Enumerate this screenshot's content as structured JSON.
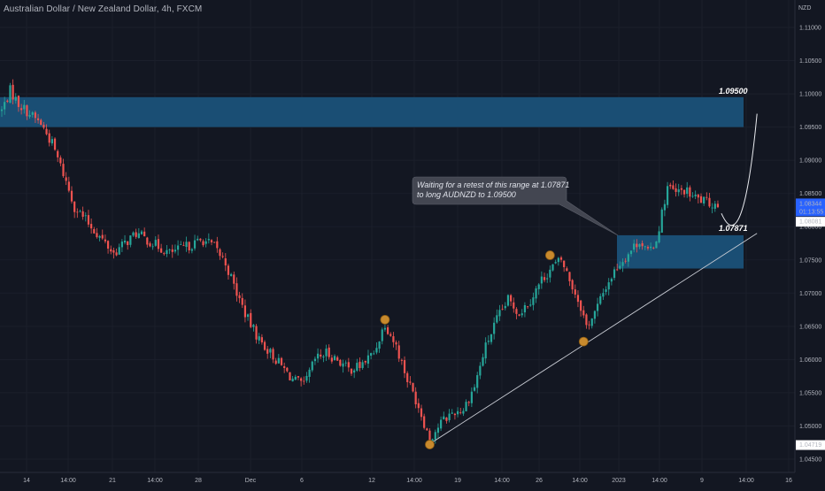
{
  "header": {
    "title": "Australian Dollar / New Zealand Dollar, 4h, FXCM"
  },
  "price_axis": {
    "unit": "NZD",
    "tick_labels": [
      "1.11000",
      "1.10500",
      "1.10000",
      "1.09500",
      "1.09000",
      "1.08500",
      "1.08000",
      "1.07500",
      "1.07000",
      "1.06500",
      "1.06000",
      "1.05500",
      "1.05000",
      "1.04500"
    ],
    "current_price": "1.08344",
    "countdown": "01:13:55",
    "marker_high": "1.08081",
    "marker_low": "1.04719"
  },
  "time_axis": {
    "tick_labels": [
      "14",
      "14:00",
      "21",
      "14:00",
      "28",
      "Dec",
      "6",
      "12",
      "14:00",
      "19",
      "14:00",
      "26",
      "14:00",
      "2023",
      "14:00",
      "9",
      "14:00",
      "16"
    ]
  },
  "annotations": {
    "callout_line1": "Waiting for a retest of this range at 1.07871",
    "callout_line2": "to long AUDNZD to 1.09500",
    "target_label": "1.09500",
    "retest_label": "1.07871"
  },
  "colors": {
    "background": "#131722",
    "up": "#26a69a",
    "down": "#ef5350",
    "zone": "#1c5a86",
    "pivot": "#c88a2d",
    "price_badge": "#2962ff"
  },
  "chart_data": {
    "type": "candlestick",
    "symbol": "AUDNZD",
    "timeframe": "4h",
    "ylim": [
      1.043,
      1.113
    ],
    "close_path": [
      [
        0,
        1.0975
      ],
      [
        3,
        1.1005
      ],
      [
        6,
        1.0985
      ],
      [
        10,
        1.097
      ],
      [
        14,
        1.0955
      ],
      [
        18,
        1.0925
      ],
      [
        22,
        1.088
      ],
      [
        26,
        1.083
      ],
      [
        30,
        1.081
      ],
      [
        36,
        1.078
      ],
      [
        40,
        1.076
      ],
      [
        44,
        1.0775
      ],
      [
        48,
        1.079
      ],
      [
        52,
        1.078
      ],
      [
        56,
        1.077
      ],
      [
        60,
        1.076
      ],
      [
        66,
        1.077
      ],
      [
        72,
        1.078
      ],
      [
        76,
        1.077
      ],
      [
        80,
        1.0745
      ],
      [
        84,
        1.07
      ],
      [
        88,
        1.066
      ],
      [
        92,
        1.063
      ],
      [
        96,
        1.061
      ],
      [
        100,
        1.059
      ],
      [
        104,
        1.057
      ],
      [
        108,
        1.056
      ],
      [
        112,
        1.06
      ],
      [
        116,
        1.061
      ],
      [
        120,
        1.06
      ],
      [
        124,
        1.0585
      ],
      [
        128,
        1.059
      ],
      [
        133,
        1.061
      ],
      [
        137,
        1.0655
      ],
      [
        141,
        1.062
      ],
      [
        145,
        1.057
      ],
      [
        149,
        1.053
      ],
      [
        153,
        1.048
      ],
      [
        157,
        1.0505
      ],
      [
        161,
        1.052
      ],
      [
        165,
        1.0525
      ],
      [
        169,
        1.056
      ],
      [
        173,
        1.062
      ],
      [
        177,
        1.066
      ],
      [
        181,
        1.069
      ],
      [
        185,
        1.067
      ],
      [
        189,
        1.069
      ],
      [
        193,
        1.072
      ],
      [
        197,
        1.074
      ],
      [
        200,
        1.075
      ],
      [
        203,
        1.072
      ],
      [
        207,
        1.068
      ],
      [
        209,
        1.065
      ],
      [
        212,
        1.067
      ],
      [
        216,
        1.071
      ],
      [
        220,
        1.074
      ],
      [
        224,
        1.076
      ],
      [
        228,
        1.078
      ],
      [
        231,
        1.076
      ],
      [
        234,
        1.078
      ],
      [
        236,
        1.082
      ],
      [
        238,
        1.086
      ],
      [
        241,
        1.085
      ],
      [
        244,
        1.0855
      ],
      [
        247,
        1.0845
      ],
      [
        250,
        1.084
      ],
      [
        253,
        1.0835
      ],
      [
        256,
        1.0834
      ]
    ],
    "zones": [
      {
        "top": 1.0995,
        "bottom": 1.095
      },
      {
        "top": 1.07871,
        "bottom": 1.0737
      }
    ],
    "trendline": {
      "from": [
        153,
        1.0473
      ],
      "to": [
        270,
        1.079
      ]
    },
    "projection": {
      "from": [
        256,
        1.082
      ],
      "via": [
        265,
        1.0787
      ],
      "to": [
        270,
        1.097
      ]
    },
    "pivots": [
      {
        "i": 137,
        "price": 1.066
      },
      {
        "i": 153,
        "price": 1.0472
      },
      {
        "i": 196,
        "price": 1.0757
      },
      {
        "i": 208,
        "price": 1.0627
      }
    ]
  }
}
